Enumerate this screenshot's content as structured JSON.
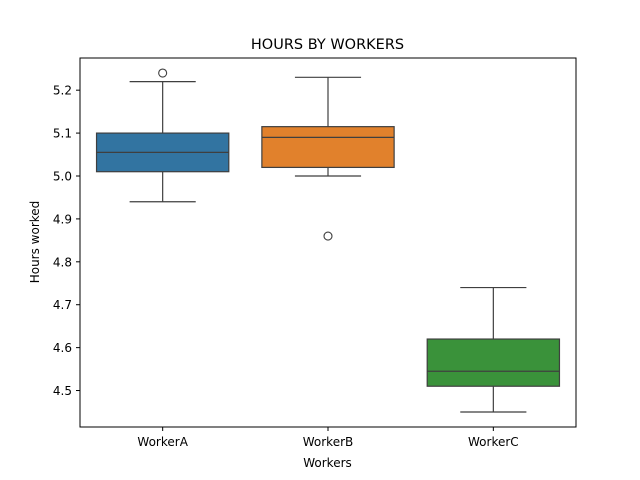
{
  "chart_data": {
    "type": "box",
    "title": "HOURS BY WORKERS",
    "xlabel": "Workers",
    "ylabel": "Hours worked",
    "ylim": [
      4.415,
      5.275
    ],
    "yticks": [
      4.5,
      4.6,
      4.7,
      4.8,
      4.9,
      5.0,
      5.1,
      5.2
    ],
    "ytick_labels": [
      "4.5",
      "4.6",
      "4.7",
      "4.8",
      "4.9",
      "5.0",
      "5.1",
      "5.2"
    ],
    "grid": false,
    "categories": [
      "WorkerA",
      "WorkerB",
      "WorkerC"
    ],
    "series": [
      {
        "category": "WorkerA",
        "whisker_low": 4.94,
        "q1": 5.01,
        "median": 5.055,
        "q3": 5.1,
        "whisker_high": 5.22,
        "outliers": [
          5.24
        ],
        "color": "#3274a1"
      },
      {
        "category": "WorkerB",
        "whisker_low": 5.0,
        "q1": 5.02,
        "median": 5.09,
        "q3": 5.115,
        "whisker_high": 5.23,
        "outliers": [
          4.86
        ],
        "color": "#e1812c"
      },
      {
        "category": "WorkerC",
        "whisker_low": 4.45,
        "q1": 4.51,
        "median": 4.545,
        "q3": 4.62,
        "whisker_high": 4.74,
        "outliers": [],
        "color": "#3a923a"
      }
    ]
  }
}
